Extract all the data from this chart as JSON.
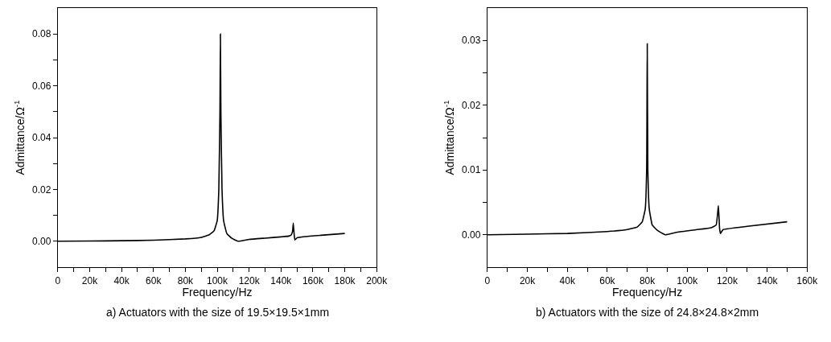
{
  "chart_data": [
    {
      "type": "line",
      "xlabel": "Frequency/Hz",
      "ylabel": "Admittance/Ω$^{-1}$",
      "annotations": [
        "a) Actuators with the size of 19.5×19.5×1mm"
      ],
      "marker": "none",
      "line_style": "solid",
      "xlim": [
        0,
        200000
      ],
      "ylim": [
        -0.01,
        0.09
      ],
      "xticks": [
        0,
        {
          "value": 10000,
          "label": null
        },
        {
          "value": 20000,
          "label": "20k"
        },
        {
          "value": 30000,
          "label": null
        },
        {
          "value": 40000,
          "label": "40k"
        },
        {
          "value": 50000,
          "label": null
        },
        {
          "value": 60000,
          "label": "60k"
        },
        {
          "value": 70000,
          "label": null
        },
        {
          "value": 80000,
          "label": "80k"
        },
        {
          "value": 90000,
          "label": null
        },
        {
          "value": 100000,
          "label": "100k"
        },
        {
          "value": 110000,
          "label": null
        },
        {
          "value": 120000,
          "label": "120k"
        },
        {
          "value": 130000,
          "label": null
        },
        {
          "value": 140000,
          "label": "140k"
        },
        {
          "value": 150000,
          "label": null
        },
        {
          "value": 160000,
          "label": "160k"
        },
        {
          "value": 170000,
          "label": null
        },
        {
          "value": 180000,
          "label": "180k"
        },
        {
          "value": 190000,
          "label": null
        },
        {
          "value": 200000,
          "label": "200k"
        }
      ],
      "yticks": [
        {
          "value": 0,
          "label": "0.00"
        },
        {
          "value": 0.01,
          "label": null
        },
        {
          "value": 0.02,
          "label": "0.02"
        },
        {
          "value": 0.03,
          "label": null
        },
        {
          "value": 0.04,
          "label": "0.04"
        },
        {
          "value": 0.05,
          "label": null
        },
        {
          "value": 0.06,
          "label": "0.06"
        },
        {
          "value": 0.07,
          "label": null
        },
        {
          "value": 0.08,
          "label": "0.08"
        }
      ],
      "series": [
        {
          "color": "#000000",
          "x": [
            0,
            20000,
            40000,
            60000,
            80000,
            90000,
            95000,
            98000,
            100000,
            101000,
            101700,
            102000,
            102300,
            103000,
            104000,
            106000,
            109000,
            113000,
            120000,
            130000,
            140000,
            145000,
            146500,
            147300,
            147700,
            148200,
            148700,
            150000,
            155000,
            165000,
            180000
          ],
          "values": [
            0,
            0.0001,
            0.0002,
            0.0004,
            0.0009,
            0.0015,
            0.0025,
            0.004,
            0.008,
            0.02,
            0.05,
            0.08,
            0.05,
            0.02,
            0.008,
            0.003,
            0.0012,
            0,
            0.0007,
            0.0012,
            0.0017,
            0.002,
            0.0025,
            0.004,
            0.007,
            0.003,
            0.0005,
            0.0013,
            0.0018,
            0.0023,
            0.003
          ]
        }
      ]
    },
    {
      "type": "line",
      "xlabel": "Frequency/Hz",
      "ylabel": "Admittance/Ω$^{-1}$",
      "annotations": [
        "b) Actuators with the size of 24.8×24.8×2mm"
      ],
      "marker": "none",
      "line_style": "solid",
      "xlim": [
        0,
        160000
      ],
      "ylim": [
        -0.005,
        0.035
      ],
      "xticks": [
        0,
        {
          "value": 10000,
          "label": null
        },
        {
          "value": 20000,
          "label": "20k"
        },
        {
          "value": 30000,
          "label": null
        },
        {
          "value": 40000,
          "label": "40k"
        },
        {
          "value": 50000,
          "label": null
        },
        {
          "value": 60000,
          "label": "60k"
        },
        {
          "value": 70000,
          "label": null
        },
        {
          "value": 80000,
          "label": "80k"
        },
        {
          "value": 90000,
          "label": null
        },
        {
          "value": 100000,
          "label": "100k"
        },
        {
          "value": 110000,
          "label": null
        },
        {
          "value": 120000,
          "label": "120k"
        },
        {
          "value": 130000,
          "label": null
        },
        {
          "value": 140000,
          "label": "140k"
        },
        {
          "value": 150000,
          "label": null
        },
        {
          "value": 160000,
          "label": "160k"
        }
      ],
      "yticks": [
        {
          "value": 0,
          "label": "0.00"
        },
        {
          "value": 0.005,
          "label": null
        },
        {
          "value": 0.01,
          "label": "0.01"
        },
        {
          "value": 0.015,
          "label": null
        },
        {
          "value": 0.02,
          "label": "0.02"
        },
        {
          "value": 0.025,
          "label": null
        },
        {
          "value": 0.03,
          "label": "0.03"
        }
      ],
      "series": [
        {
          "color": "#000000",
          "x": [
            0,
            20000,
            40000,
            60000,
            70000,
            75000,
            77500,
            79000,
            79700,
            80000,
            80300,
            81000,
            82500,
            85000,
            89000,
            95000,
            105000,
            112000,
            114500,
            115600,
            116200,
            116600,
            118000,
            130000,
            150000
          ],
          "values": [
            0,
            0.0001,
            0.0002,
            0.0005,
            0.0008,
            0.0012,
            0.002,
            0.004,
            0.01,
            0.0295,
            0.01,
            0.004,
            0.0015,
            0.0007,
            0,
            0.0004,
            0.0008,
            0.0011,
            0.0015,
            0.0045,
            0.001,
            0.0002,
            0.0008,
            0.0013,
            0.002
          ]
        }
      ]
    }
  ]
}
